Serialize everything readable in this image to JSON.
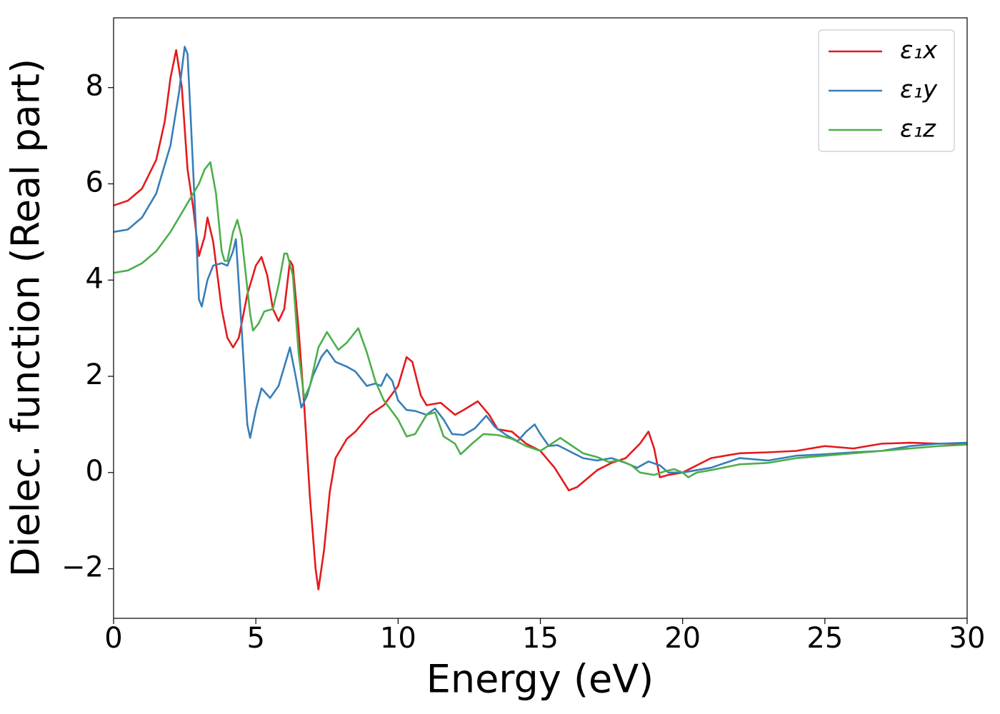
{
  "chart_data": {
    "type": "line",
    "xlabel": "Energy (eV)",
    "ylabel": "Dielec. function (Real part)",
    "xlim": [
      0,
      30
    ],
    "ylim": [
      -3.03,
      9.45
    ],
    "xticks": [
      0,
      5,
      10,
      15,
      20,
      25,
      30
    ],
    "yticks": [
      {
        "value": -2,
        "label": "−2"
      },
      0,
      2,
      4,
      6,
      8
    ],
    "grid": false,
    "legend": "upper right",
    "series": [
      {
        "name": "ε₁x",
        "color": "#e41a1c",
        "x": [
          0,
          0.5,
          1,
          1.5,
          1.8,
          2.0,
          2.2,
          2.4,
          2.6,
          2.8,
          3.0,
          3.2,
          3.3,
          3.5,
          3.8,
          4.0,
          4.2,
          4.4,
          4.7,
          5.0,
          5.2,
          5.4,
          5.6,
          5.8,
          6.0,
          6.2,
          6.3,
          6.5,
          6.7,
          6.9,
          7.1,
          7.2,
          7.4,
          7.6,
          7.8,
          8.2,
          8.5,
          9.0,
          9.5,
          10.0,
          10.3,
          10.5,
          10.8,
          11.0,
          11.5,
          12.0,
          12.3,
          12.8,
          13.2,
          13.5,
          14.0,
          14.5,
          15.0,
          15.5,
          16.0,
          16.3,
          17.0,
          17.5,
          18.0,
          18.5,
          18.8,
          19.0,
          19.2,
          19.5,
          20,
          21,
          22,
          23,
          24,
          25,
          26,
          27,
          28,
          29,
          30
        ],
        "values": [
          5.55,
          5.65,
          5.9,
          6.5,
          7.3,
          8.2,
          8.78,
          8.0,
          6.3,
          5.5,
          4.5,
          4.9,
          5.3,
          4.8,
          3.4,
          2.8,
          2.6,
          2.8,
          3.7,
          4.3,
          4.48,
          4.1,
          3.4,
          3.15,
          3.4,
          4.4,
          4.3,
          3.0,
          1.4,
          -0.5,
          -2.0,
          -2.43,
          -1.6,
          -0.4,
          0.3,
          0.7,
          0.85,
          1.2,
          1.4,
          1.8,
          2.4,
          2.3,
          1.6,
          1.4,
          1.45,
          1.2,
          1.3,
          1.48,
          1.2,
          0.9,
          0.85,
          0.6,
          0.45,
          0.1,
          -0.37,
          -0.3,
          0.05,
          0.2,
          0.3,
          0.6,
          0.85,
          0.5,
          -0.1,
          -0.05,
          0.0,
          0.3,
          0.4,
          0.42,
          0.45,
          0.55,
          0.5,
          0.6,
          0.62,
          0.6,
          0.6
        ]
      },
      {
        "name": "ε₁y",
        "color": "#377eb8",
        "x": [
          0,
          0.5,
          1,
          1.5,
          2.0,
          2.3,
          2.5,
          2.6,
          2.7,
          2.9,
          3.0,
          3.1,
          3.3,
          3.5,
          3.8,
          4.0,
          4.2,
          4.3,
          4.5,
          4.7,
          4.8,
          5.0,
          5.2,
          5.5,
          5.8,
          6.0,
          6.2,
          6.4,
          6.6,
          6.8,
          7.0,
          7.3,
          7.5,
          7.8,
          8.2,
          8.5,
          8.9,
          9.2,
          9.4,
          9.6,
          9.8,
          10.0,
          10.3,
          10.6,
          11.0,
          11.3,
          11.6,
          11.9,
          12.3,
          12.7,
          13.1,
          13.4,
          13.8,
          14.2,
          14.5,
          14.8,
          15.0,
          15.3,
          15.6,
          16.0,
          16.5,
          17.0,
          17.5,
          18.0,
          18.4,
          18.8,
          19.2,
          19.5,
          20,
          21,
          22,
          23,
          24,
          25,
          26,
          27,
          28,
          29,
          30
        ],
        "values": [
          5.0,
          5.05,
          5.3,
          5.8,
          6.8,
          7.9,
          8.85,
          8.7,
          7.5,
          5.0,
          3.6,
          3.45,
          4.0,
          4.3,
          4.35,
          4.3,
          4.6,
          4.85,
          3.0,
          1.0,
          0.72,
          1.3,
          1.75,
          1.55,
          1.8,
          2.2,
          2.6,
          2.0,
          1.35,
          1.6,
          2.0,
          2.4,
          2.55,
          2.3,
          2.2,
          2.1,
          1.8,
          1.85,
          1.8,
          2.05,
          1.9,
          1.5,
          1.3,
          1.28,
          1.2,
          1.33,
          1.1,
          0.8,
          0.78,
          0.92,
          1.18,
          0.95,
          0.78,
          0.65,
          0.85,
          1.0,
          0.8,
          0.55,
          0.57,
          0.45,
          0.3,
          0.25,
          0.3,
          0.2,
          0.1,
          0.23,
          0.15,
          0.0,
          0.0,
          0.1,
          0.3,
          0.25,
          0.35,
          0.38,
          0.42,
          0.45,
          0.55,
          0.6,
          0.62
        ]
      },
      {
        "name": "ε₁z",
        "color": "#4daf4a",
        "x": [
          0,
          0.5,
          1,
          1.5,
          2.0,
          2.5,
          3.0,
          3.2,
          3.4,
          3.6,
          3.8,
          3.9,
          4.0,
          4.2,
          4.35,
          4.5,
          4.8,
          4.9,
          5.1,
          5.3,
          5.6,
          5.8,
          6.0,
          6.1,
          6.3,
          6.5,
          6.7,
          6.9,
          7.2,
          7.5,
          7.9,
          8.2,
          8.6,
          8.9,
          9.2,
          9.5,
          10.0,
          10.3,
          10.6,
          11.0,
          11.3,
          11.6,
          12.0,
          12.2,
          12.6,
          13.0,
          13.5,
          14.0,
          14.5,
          15.0,
          15.4,
          15.7,
          16.0,
          16.5,
          17.0,
          17.4,
          17.8,
          18.2,
          18.5,
          19.0,
          19.4,
          19.7,
          20.0,
          20.2,
          20.5,
          21,
          22,
          23,
          24,
          25,
          26,
          27,
          28,
          29,
          30
        ],
        "values": [
          4.15,
          4.2,
          4.35,
          4.6,
          5.0,
          5.5,
          6.0,
          6.3,
          6.45,
          5.8,
          4.6,
          4.4,
          4.4,
          5.0,
          5.25,
          4.9,
          3.3,
          2.95,
          3.1,
          3.35,
          3.4,
          3.9,
          4.55,
          4.55,
          4.1,
          2.5,
          1.55,
          1.8,
          2.6,
          2.92,
          2.55,
          2.7,
          3.0,
          2.5,
          1.9,
          1.5,
          1.1,
          0.75,
          0.8,
          1.2,
          1.25,
          0.75,
          0.6,
          0.38,
          0.6,
          0.8,
          0.78,
          0.7,
          0.55,
          0.45,
          0.6,
          0.72,
          0.6,
          0.4,
          0.32,
          0.22,
          0.25,
          0.15,
          0.0,
          -0.05,
          0.03,
          0.07,
          0.0,
          -0.1,
          0.0,
          0.05,
          0.17,
          0.2,
          0.3,
          0.35,
          0.4,
          0.45,
          0.5,
          0.55,
          0.58
        ]
      }
    ]
  }
}
